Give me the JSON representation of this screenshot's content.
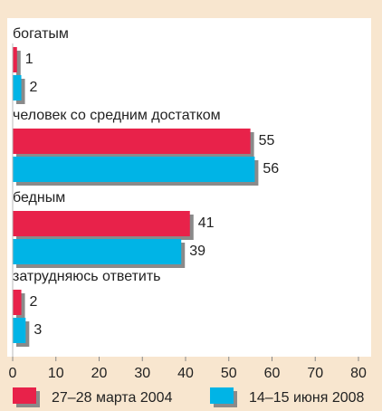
{
  "chart_data": {
    "type": "bar",
    "orientation": "horizontal",
    "categories": [
      "богатым",
      "человек со средним достатком",
      "бедным",
      "затрудняюсь ответить"
    ],
    "series": [
      {
        "name": "27–28 марта 2004",
        "color": "#e8224a",
        "values": [
          1,
          55,
          41,
          2
        ]
      },
      {
        "name": "14–15 июня 2008",
        "color": "#00b4e6",
        "values": [
          2,
          56,
          39,
          3
        ]
      }
    ],
    "xlim": [
      0,
      80
    ],
    "xticks": [
      0,
      10,
      20,
      30,
      40,
      50,
      60,
      70,
      80
    ],
    "legend": "bottom"
  }
}
